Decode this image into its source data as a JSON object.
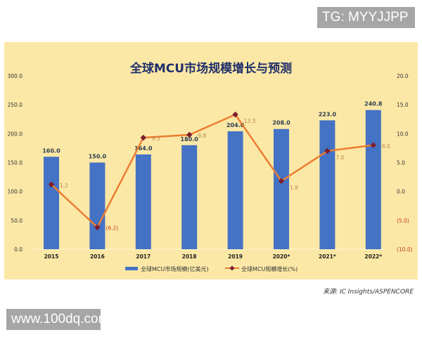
{
  "watermark_top": "TG: MYYJJPP",
  "watermark_bottom": "www.100dq.com",
  "source": "来源:  IC Insights/ASPENCORE",
  "chart_data": {
    "type": "bar+line",
    "title": "全球MCU市场规模增长与预测",
    "categories": [
      "2015",
      "2016",
      "2017",
      "2018",
      "2019",
      "2020*",
      "2021*",
      "2022*"
    ],
    "series": [
      {
        "name": "全球MCU市场规模(亿美元)",
        "type": "bar",
        "axis": "left",
        "color": "#4472c4",
        "values": [
          160.0,
          150.0,
          164.0,
          180.0,
          204.0,
          208.0,
          223.0,
          240.8
        ],
        "labels": [
          "160.0",
          "150.0",
          "164.0",
          "180.0",
          "204.0",
          "208.0",
          "223.0",
          "240.8"
        ]
      },
      {
        "name": "全球MCU规模增长(%)",
        "type": "line",
        "axis": "right",
        "color": "#ed7d31",
        "marker_color": "#7b1e2e",
        "values": [
          1.2,
          -6.2,
          9.3,
          9.8,
          13.3,
          1.8,
          7.0,
          8.0
        ],
        "labels": [
          "1.2",
          "(6.2)",
          "9.3",
          "9.8",
          "13.3",
          "1.8",
          "7.0",
          "8.0"
        ]
      }
    ],
    "left_axis": {
      "ylim": [
        0,
        300
      ],
      "ticks": [
        "0.0",
        "50.0",
        "100.0",
        "150.0",
        "200.0",
        "250.0",
        "300.0"
      ]
    },
    "right_axis": {
      "ylim": [
        -10,
        20
      ],
      "ticks": [
        "(10.0)",
        "(5.0)",
        "0.0",
        "5.0",
        "10.0",
        "15.0",
        "20.0"
      ],
      "negative_color": "#c0392b"
    },
    "grid": false,
    "legend": "bottom"
  }
}
